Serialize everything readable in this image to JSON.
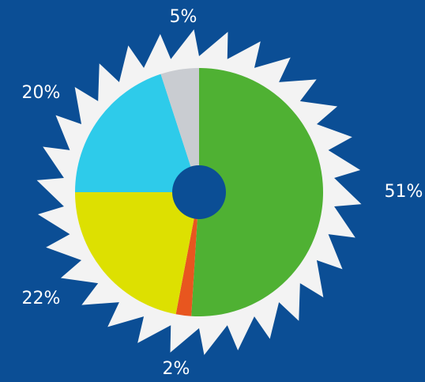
{
  "chart_data": {
    "type": "pie",
    "values": [
      51,
      2,
      22,
      20,
      5
    ],
    "value_labels": [
      "51%",
      "2%",
      "22%",
      "20%",
      "5%"
    ],
    "colors": [
      "#4fb133",
      "#e8561f",
      "#dde001",
      "#2ecbea",
      "#c9ccd1"
    ]
  }
}
